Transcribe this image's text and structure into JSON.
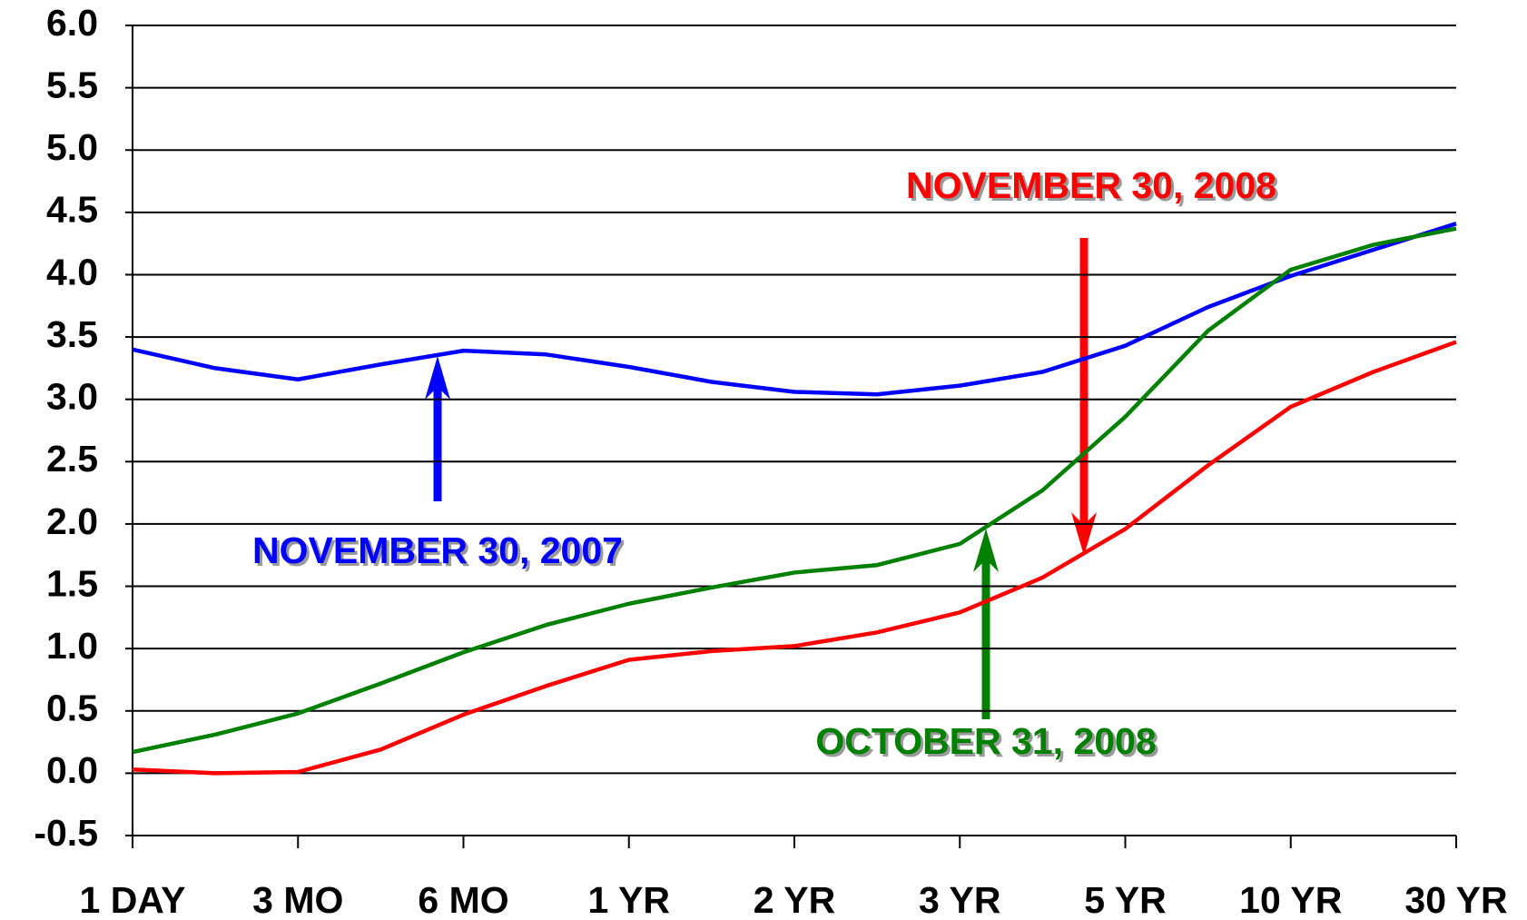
{
  "chart_data": {
    "type": "line",
    "x": [
      0,
      0.5,
      1,
      1.5,
      2,
      2.5,
      3,
      3.5,
      4,
      4.5,
      5,
      5.5,
      6,
      6.5,
      7,
      7.5,
      8
    ],
    "series": [
      {
        "color": "#0000ff",
        "values": [
          3.4,
          3.25,
          3.16,
          3.28,
          3.39,
          3.36,
          3.26,
          3.14,
          3.06,
          3.04,
          3.11,
          3.22,
          3.43,
          3.74,
          3.99,
          4.2,
          4.41
        ]
      },
      {
        "color": "#008000",
        "values": [
          0.17,
          0.31,
          0.48,
          0.72,
          0.97,
          1.19,
          1.36,
          1.49,
          1.61,
          1.67,
          1.84,
          2.27,
          2.86,
          3.55,
          4.04,
          4.24,
          4.37
        ]
      },
      {
        "color": "#ff0000",
        "values": [
          0.03,
          0.0,
          0.01,
          0.19,
          0.47,
          0.7,
          0.91,
          0.98,
          1.02,
          1.13,
          1.29,
          1.57,
          1.96,
          2.47,
          2.94,
          3.22,
          3.46
        ]
      }
    ],
    "xlim": [
      0,
      8
    ],
    "xticks": [
      {
        "value": 0,
        "label": "1 DAY"
      },
      {
        "value": 1,
        "label": "3 MO"
      },
      {
        "value": 2,
        "label": "6 MO"
      },
      {
        "value": 3,
        "label": "1 YR"
      },
      {
        "value": 4,
        "label": "2 YR"
      },
      {
        "value": 5,
        "label": "3 YR"
      },
      {
        "value": 6,
        "label": "5 YR"
      },
      {
        "value": 7,
        "label": "10 YR"
      },
      {
        "value": 8,
        "label": "30 YR"
      }
    ],
    "ylim": [
      -0.5,
      6
    ],
    "yticks": [
      {
        "value": -0.5,
        "label": "-0.5"
      },
      {
        "value": 0,
        "label": "0.0"
      },
      {
        "value": 0.5,
        "label": "0.5"
      },
      {
        "value": 1,
        "label": "1.0"
      },
      {
        "value": 1.5,
        "label": "1.5"
      },
      {
        "value": 2,
        "label": "2.0"
      },
      {
        "value": 2.5,
        "label": "2.5"
      },
      {
        "value": 3,
        "label": "3.0"
      },
      {
        "value": 3.5,
        "label": "3.5"
      },
      {
        "value": 4,
        "label": "4.0"
      },
      {
        "value": 4.5,
        "label": "4.5"
      },
      {
        "value": 5,
        "label": "5.0"
      },
      {
        "value": 5.5,
        "label": "5.5"
      },
      {
        "value": 6,
        "label": "6.0"
      }
    ],
    "grid": true,
    "annotations": [
      {
        "text": "NOVEMBER 30, 2007",
        "color": "#0000ff"
      },
      {
        "text": "NOVEMBER 30, 2008",
        "color": "#ff0000"
      },
      {
        "text": "OCTOBER 31, 2008",
        "color": "#008000"
      }
    ]
  }
}
